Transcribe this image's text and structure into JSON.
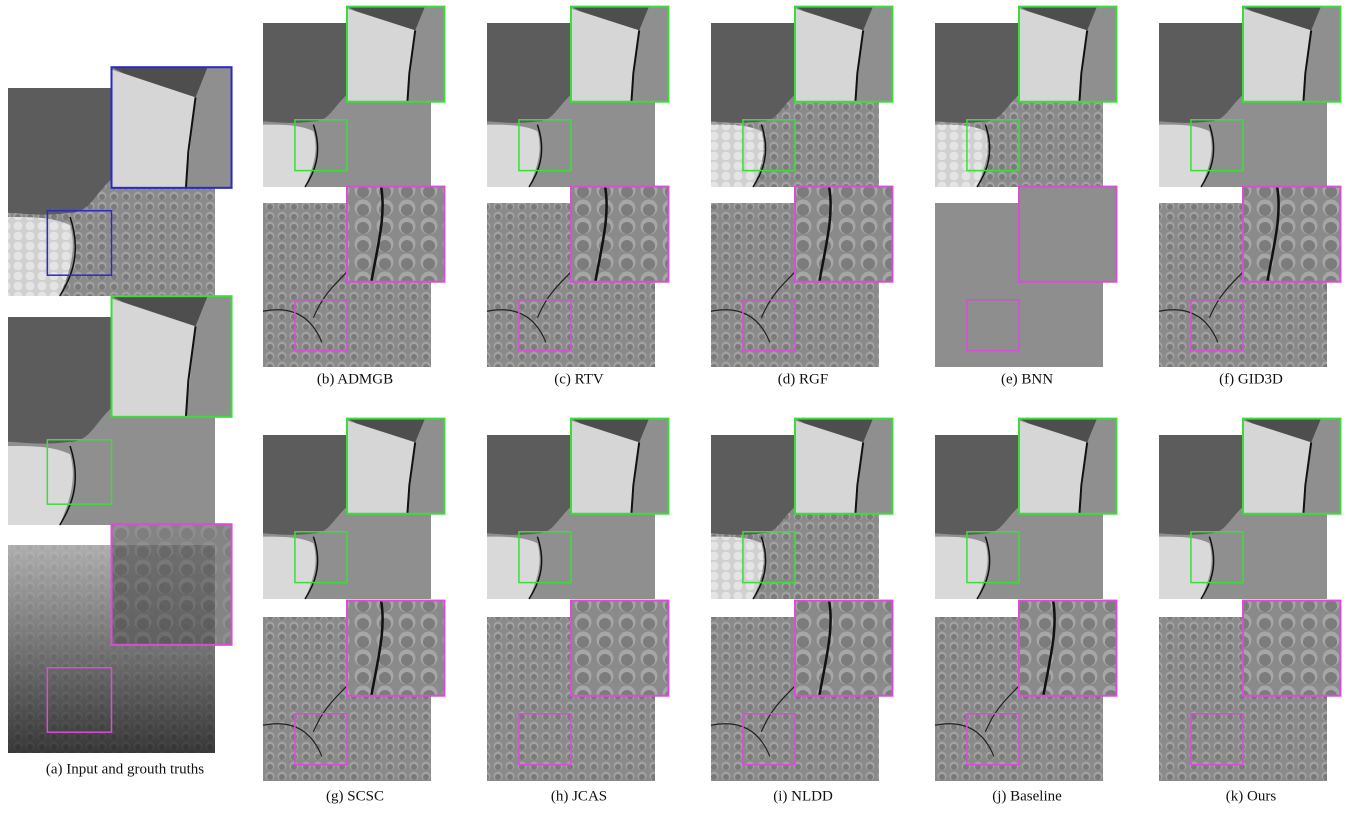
{
  "figure": {
    "panel_a": {
      "caption": "(a) Input and grouth truths"
    },
    "panels": [
      {
        "caption": "(b) ADMGB"
      },
      {
        "caption": "(c) RTV"
      },
      {
        "caption": "(d) RGF"
      },
      {
        "caption": "(e) BNN"
      },
      {
        "caption": "(f) GID3D"
      },
      {
        "caption": "(g) SCSC"
      },
      {
        "caption": "(h) JCAS"
      },
      {
        "caption": "(i) NLDD"
      },
      {
        "caption": "(j) Baseline"
      },
      {
        "caption": "(k) Ours"
      }
    ]
  }
}
